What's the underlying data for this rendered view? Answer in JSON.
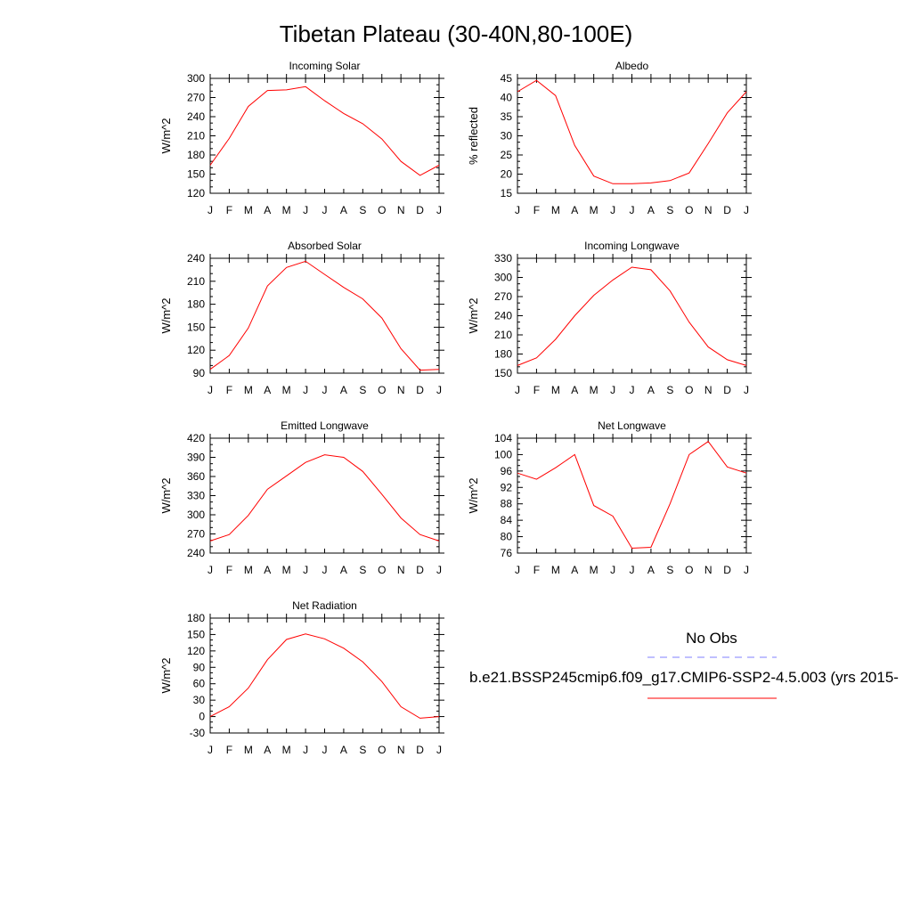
{
  "figure_title": "Tibetan Plateau (30-40N,80-100E)",
  "months": [
    "J",
    "F",
    "M",
    "A",
    "M",
    "J",
    "J",
    "A",
    "S",
    "O",
    "N",
    "D",
    "J"
  ],
  "legend": {
    "obs_label": "No Obs",
    "model_label": "b.e21.BSSP245cmip6.f09_g17.CMIP6-SSP2-4.5.003 (yrs 2015-",
    "obs_color": "#8080ff",
    "model_color": "#ff0000"
  },
  "chart_data": [
    {
      "type": "line",
      "title": "Incoming Solar",
      "ylabel": "W/m^2",
      "ylim": [
        120,
        300
      ],
      "yticks": [
        120,
        150,
        180,
        210,
        240,
        270,
        300
      ],
      "series": [
        {
          "values": [
            164,
            206,
            256,
            281,
            282,
            287,
            265,
            245,
            229,
            205,
            170,
            148,
            164
          ]
        }
      ]
    },
    {
      "type": "line",
      "title": "Albedo",
      "ylabel": "% reflected",
      "ylim": [
        15,
        45
      ],
      "yticks": [
        15,
        20,
        25,
        30,
        35,
        40,
        45
      ],
      "series": [
        {
          "values": [
            41.5,
            44.5,
            40.5,
            27.5,
            19.5,
            17.5,
            17.5,
            17.7,
            18.3,
            20.3,
            28,
            36,
            41.5
          ]
        }
      ]
    },
    {
      "type": "line",
      "title": "Absorbed Solar",
      "ylabel": "W/m^2",
      "ylim": [
        90,
        240
      ],
      "yticks": [
        90,
        120,
        150,
        180,
        210,
        240
      ],
      "series": [
        {
          "values": [
            95,
            113,
            149,
            204,
            228,
            236,
            219,
            202,
            187,
            162,
            122,
            94,
            95
          ]
        }
      ]
    },
    {
      "type": "line",
      "title": "Incoming Longwave",
      "ylabel": "W/m^2",
      "ylim": [
        150,
        330
      ],
      "yticks": [
        150,
        180,
        210,
        240,
        270,
        300,
        330
      ],
      "series": [
        {
          "values": [
            162,
            174,
            203,
            240,
            272,
            296,
            316,
            312,
            279,
            230,
            191,
            171,
            162
          ]
        }
      ]
    },
    {
      "type": "line",
      "title": "Emitted Longwave",
      "ylabel": "W/m^2",
      "ylim": [
        240,
        420
      ],
      "yticks": [
        240,
        270,
        300,
        330,
        360,
        390,
        420
      ],
      "series": [
        {
          "values": [
            259,
            269,
            299,
            340,
            361,
            382,
            394,
            390,
            368,
            332,
            295,
            269,
            259
          ]
        }
      ]
    },
    {
      "type": "line",
      "title": "Net Longwave",
      "ylabel": "W/m^2",
      "ylim": [
        76,
        104
      ],
      "yticks": [
        76,
        80,
        84,
        88,
        92,
        96,
        100,
        104
      ],
      "series": [
        {
          "values": [
            95.5,
            94,
            96.8,
            100,
            87.6,
            85,
            77.2,
            77.4,
            88,
            100,
            103.2,
            97,
            95.5
          ]
        }
      ]
    },
    {
      "type": "line",
      "title": "Net Radiation",
      "ylabel": "W/m^2",
      "ylim": [
        -30,
        180
      ],
      "yticks": [
        -30,
        0,
        30,
        60,
        90,
        120,
        150,
        180
      ],
      "series": [
        {
          "values": [
            0,
            18,
            52,
            104,
            141,
            151,
            142,
            125,
            100,
            64,
            18,
            -3,
            0
          ]
        }
      ]
    }
  ]
}
